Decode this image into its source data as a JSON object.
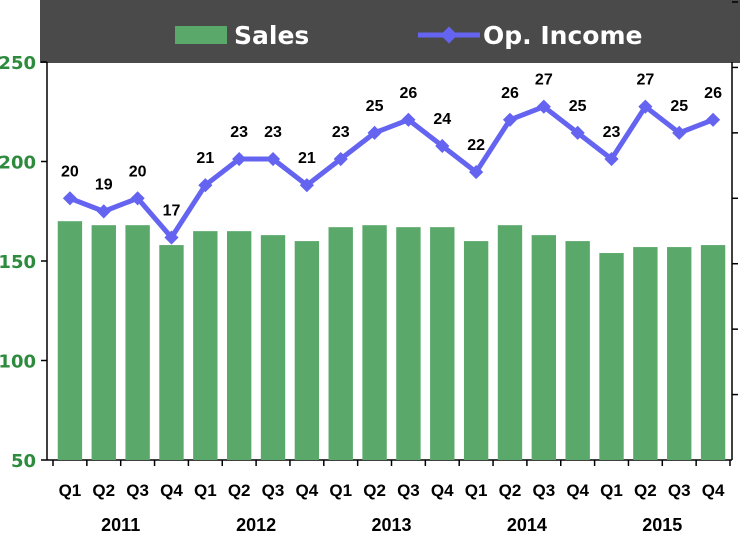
{
  "chart_data": {
    "type": "bar+line",
    "legend": {
      "placement": "top",
      "background": "#4a4a4a",
      "entries": [
        "Sales",
        "Op. Income"
      ]
    },
    "categories": [
      "Q1",
      "Q2",
      "Q3",
      "Q4",
      "Q1",
      "Q2",
      "Q3",
      "Q4",
      "Q1",
      "Q2",
      "Q3",
      "Q4",
      "Q1",
      "Q2",
      "Q3",
      "Q4",
      "Q1",
      "Q2",
      "Q3",
      "Q4"
    ],
    "years": [
      "2011",
      "2012",
      "2013",
      "2014",
      "2015"
    ],
    "y_left": {
      "ticks": [
        "50",
        "100",
        "150",
        "200",
        "250"
      ],
      "range": [
        50,
        250
      ]
    },
    "y_right": {
      "range": [
        0,
        35
      ]
    },
    "series": [
      {
        "name": "Sales",
        "type": "bar",
        "axis": "left",
        "color": "#5aa86a",
        "values": [
          170,
          168,
          168,
          158,
          165,
          165,
          163,
          160,
          167,
          168,
          167,
          167,
          160,
          168,
          163,
          160,
          154,
          157,
          157,
          158
        ]
      },
      {
        "name": "Op. Income",
        "type": "line",
        "axis": "right",
        "color": "#6464f0",
        "values": [
          20,
          19,
          20,
          17,
          21,
          23,
          23,
          21,
          23,
          25,
          26,
          24,
          22,
          26,
          27,
          25,
          23,
          27,
          25,
          26
        ],
        "labels": [
          "20",
          "19",
          "20",
          "17",
          "21",
          "23",
          "23",
          "21",
          "23",
          "25",
          "26",
          "24",
          "22",
          "26",
          "27",
          "25",
          "23",
          "27",
          "25",
          "26"
        ]
      }
    ],
    "grid": false
  }
}
